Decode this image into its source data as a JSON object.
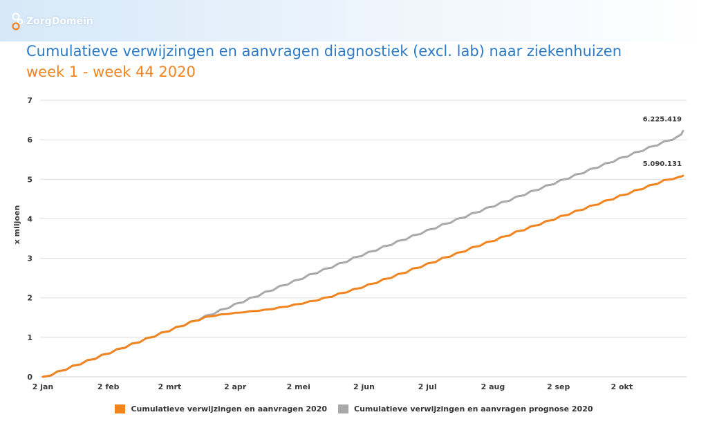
{
  "header": {
    "logo_text": "ZorgDomein",
    "title": "Cumulatieve verwijzingen en aanvragen diagnostiek (excl. lab) naar ziekenhuizen",
    "subtitle": "week 1 - week 44 2020"
  },
  "colors": {
    "title": "#2b7bc8",
    "subtitle": "#f28420",
    "series_actual": "#f28420",
    "series_forecast": "#a9a9a9",
    "grid": "#dddddd"
  },
  "chart_data": {
    "type": "line",
    "title": "Cumulatieve verwijzingen en aanvragen diagnostiek (excl. lab) naar ziekenhuizen",
    "subtitle": "week 1 - week 44 2020",
    "ylabel": "x miljoen",
    "xlabel": "",
    "ylim": [
      0,
      7
    ],
    "yticks": [
      0,
      1,
      2,
      3,
      4,
      5,
      6,
      7
    ],
    "xticks": [
      "2 jan",
      "2 feb",
      "2 mrt",
      "2 apr",
      "2 mei",
      "2 jun",
      "2 jul",
      "2 aug",
      "2 sep",
      "2 okt"
    ],
    "grid": "horizontal",
    "legend_position": "bottom",
    "x": [
      "2020-01-02",
      "2020-01-09",
      "2020-01-16",
      "2020-01-23",
      "2020-01-30",
      "2020-02-06",
      "2020-02-13",
      "2020-02-20",
      "2020-02-27",
      "2020-03-05",
      "2020-03-12",
      "2020-03-19",
      "2020-03-26",
      "2020-04-02",
      "2020-04-09",
      "2020-04-16",
      "2020-04-23",
      "2020-04-30",
      "2020-05-07",
      "2020-05-14",
      "2020-05-21",
      "2020-05-28",
      "2020-06-04",
      "2020-06-11",
      "2020-06-18",
      "2020-06-25",
      "2020-07-02",
      "2020-07-09",
      "2020-07-16",
      "2020-07-23",
      "2020-07-30",
      "2020-08-06",
      "2020-08-13",
      "2020-08-20",
      "2020-08-27",
      "2020-09-03",
      "2020-09-10",
      "2020-09-17",
      "2020-09-24",
      "2020-10-01",
      "2020-10-08",
      "2020-10-15",
      "2020-10-22",
      "2020-10-29",
      "2020-10-31"
    ],
    "series": [
      {
        "name": "Cumulatieve verwijzingen en aanvragen 2020",
        "color": "#f28420",
        "end_label": "5.090.131",
        "values": [
          0.0,
          0.14,
          0.28,
          0.42,
          0.56,
          0.7,
          0.84,
          0.98,
          1.12,
          1.26,
          1.4,
          1.52,
          1.58,
          1.62,
          1.66,
          1.7,
          1.76,
          1.83,
          1.91,
          2.0,
          2.11,
          2.22,
          2.34,
          2.47,
          2.6,
          2.74,
          2.87,
          3.01,
          3.14,
          3.28,
          3.41,
          3.54,
          3.68,
          3.81,
          3.94,
          4.07,
          4.2,
          4.33,
          4.46,
          4.59,
          4.72,
          4.85,
          4.98,
          5.06,
          5.09
        ]
      },
      {
        "name": "Cumulatieve verwijzingen en aanvragen prognose 2020",
        "color": "#a9a9a9",
        "end_label": "6.225.419",
        "values": [
          0.0,
          0.14,
          0.28,
          0.42,
          0.56,
          0.7,
          0.84,
          0.98,
          1.12,
          1.26,
          1.4,
          1.55,
          1.7,
          1.85,
          2.0,
          2.15,
          2.3,
          2.44,
          2.59,
          2.73,
          2.87,
          3.02,
          3.16,
          3.3,
          3.44,
          3.58,
          3.72,
          3.86,
          4.0,
          4.14,
          4.28,
          4.42,
          4.56,
          4.7,
          4.84,
          4.98,
          5.12,
          5.26,
          5.4,
          5.54,
          5.68,
          5.82,
          5.96,
          6.1,
          6.225
        ]
      }
    ]
  },
  "legend": {
    "item_actual": "Cumulatieve verwijzingen en aanvragen 2020",
    "item_forecast": "Cumulatieve verwijzingen en aanvragen prognose 2020"
  }
}
